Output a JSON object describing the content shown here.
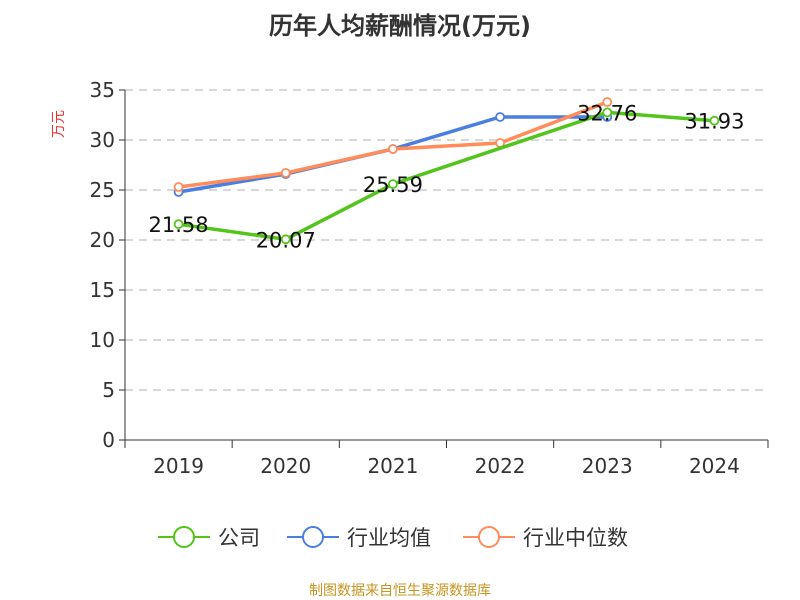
{
  "chart_data": {
    "type": "line",
    "title": "历年人均薪酬情况(万元)",
    "ylabel": "万元",
    "categories": [
      "2019",
      "2020",
      "2021",
      "2022",
      "2023",
      "2024"
    ],
    "ylim": [
      0,
      35
    ],
    "yticks": [
      0,
      5,
      10,
      15,
      20,
      25,
      30,
      35
    ],
    "grid": true,
    "legend_position": "bottom",
    "series": [
      {
        "name": "公司",
        "color": "#52c41a",
        "values": [
          21.58,
          20.07,
          25.59,
          null,
          32.76,
          31.93
        ],
        "labels": true
      },
      {
        "name": "行业均值",
        "color": "#4a7fe0",
        "values": [
          24.8,
          26.6,
          29.1,
          32.3,
          32.3,
          null
        ]
      },
      {
        "name": "行业中位数",
        "color": "#ff8c5a",
        "values": [
          25.3,
          26.7,
          29.1,
          29.7,
          33.8,
          null
        ]
      }
    ]
  },
  "source": "制图数据来自恒生聚源数据库"
}
